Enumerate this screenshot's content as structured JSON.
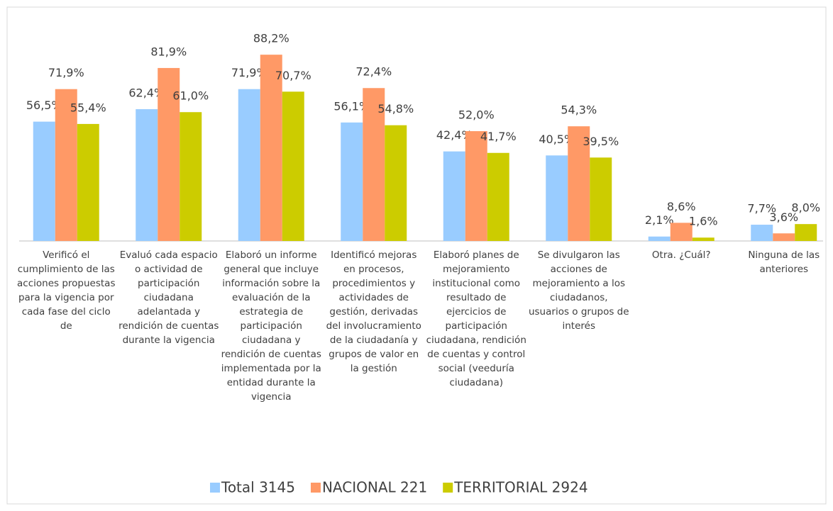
{
  "chart_data": {
    "type": "bar",
    "categories": [
      "Verificó el cumplimiento de las acciones propuestas para la vigencia por cada fase del ciclo de",
      "Evaluó cada espacio o actividad de participación ciudadana adelantada y rendición de cuentas durante la vigencia",
      "Elaboró un informe general que incluye información sobre la evaluación de la estrategia de participación ciudadana y rendición de cuentas implementada por la entidad durante la vigencia",
      "Identificó mejoras en procesos, procedimientos y actividades de gestión, derivadas del involucramiento de la ciudadanía y grupos de valor en la gestión",
      "Elaboró planes de mejoramiento institucional como resultado de ejercicios de participación ciudadana, rendición de cuentas y control social (veeduría ciudadana)",
      "Se divulgaron las acciones de mejoramiento a los ciudadanos, usuarios o grupos de interés",
      "Otra. ¿Cuál?",
      "Ninguna de las anteriores"
    ],
    "series": [
      {
        "name": "Total 3145",
        "color": "#99ccff",
        "values": [
          56.5,
          62.4,
          71.9,
          56.1,
          42.4,
          40.5,
          2.1,
          7.7
        ],
        "value_labels": [
          "56,5%",
          "62,4%",
          "71,9%",
          "56,1%",
          "42,4%",
          "40,5%",
          "2,1%",
          "7,7%"
        ]
      },
      {
        "name": "NACIONAL 221",
        "color": "#ff9966",
        "values": [
          71.9,
          81.9,
          88.2,
          72.4,
          52.0,
          54.3,
          8.6,
          3.6
        ],
        "value_labels": [
          "71,9%",
          "81,9%",
          "88,2%",
          "72,4%",
          "52,0%",
          "54,3%",
          "8,6%",
          "3,6%"
        ]
      },
      {
        "name": "TERRITORIAL 2924",
        "color": "#cccc00",
        "values": [
          55.4,
          61.0,
          70.7,
          54.8,
          41.7,
          39.5,
          1.6,
          8.0
        ],
        "value_labels": [
          "55,4%",
          "61,0%",
          "70,7%",
          "54,8%",
          "41,7%",
          "39,5%",
          "1,6%",
          "8,0%"
        ]
      }
    ],
    "legend": "bottom"
  }
}
